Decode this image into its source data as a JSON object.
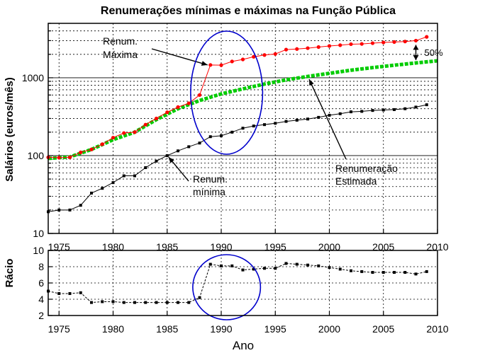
{
  "chart_data": [
    {
      "type": "line",
      "title": "Renumerações mínimas e máximas na Função Pública",
      "ylabel": "Salários (euros/mês)",
      "yscale": "log",
      "xlim": [
        1974,
        2010
      ],
      "ylim": [
        10,
        5000
      ],
      "xticks": [
        "1975",
        "1980",
        "1985",
        "1990",
        "1995",
        "2000",
        "2005",
        "2010"
      ],
      "yticks": [
        "10",
        "100",
        "1000"
      ],
      "grid": true,
      "colors": {
        "maxima": "#ff0000",
        "minima": "#000000",
        "estimada": "#00cc00",
        "circle": "#0000cc"
      },
      "series": [
        {
          "id": "maxima",
          "x": [
            1974,
            1975,
            1976,
            1977,
            1978,
            1979,
            1980,
            1981,
            1982,
            1983,
            1984,
            1985,
            1986,
            1987,
            1988,
            1989,
            1990,
            1991,
            1992,
            1993,
            1994,
            1995,
            1996,
            1997,
            1998,
            1999,
            2000,
            2001,
            2002,
            2003,
            2004,
            2005,
            2006,
            2007,
            2008,
            2009
          ],
          "y": [
            95,
            94,
            95,
            110,
            120,
            140,
            170,
            195,
            200,
            250,
            300,
            360,
            420,
            470,
            600,
            1460,
            1450,
            1620,
            1720,
            1860,
            1960,
            2020,
            2300,
            2340,
            2400,
            2480,
            2560,
            2620,
            2700,
            2720,
            2780,
            2840,
            2880,
            2920,
            3000,
            3350
          ]
        },
        {
          "id": "estimada",
          "x": [
            1974,
            1976,
            1978,
            1980,
            1982,
            1984,
            1986,
            1988,
            1990,
            1992,
            1994,
            1996,
            1998,
            2000,
            2002,
            2004,
            2006,
            2008,
            2010
          ],
          "y": [
            92,
            96,
            120,
            160,
            200,
            290,
            400,
            510,
            620,
            720,
            830,
            940,
            1040,
            1140,
            1250,
            1350,
            1450,
            1550,
            1650
          ]
        },
        {
          "id": "minima",
          "x": [
            1974,
            1975,
            1976,
            1977,
            1978,
            1979,
            1980,
            1981,
            1982,
            1983,
            1984,
            1985,
            1986,
            1987,
            1988,
            1989,
            1990,
            1991,
            1992,
            1993,
            1994,
            1995,
            1996,
            1997,
            1998,
            1999,
            2000,
            2001,
            2002,
            2003,
            2004,
            2005,
            2006,
            2007,
            2008,
            2009
          ],
          "y": [
            19,
            20,
            20,
            23,
            33,
            38,
            45,
            55,
            55,
            70,
            85,
            100,
            115,
            130,
            145,
            175,
            180,
            200,
            225,
            240,
            250,
            260,
            275,
            285,
            295,
            310,
            330,
            345,
            365,
            370,
            380,
            385,
            390,
            400,
            420,
            450
          ]
        }
      ],
      "annotations": [
        {
          "lines": [
            "Renum.",
            "Máxima"
          ],
          "target": [
            1989,
            1460
          ]
        },
        {
          "lines": [
            "Renum.",
            "mínima"
          ],
          "target": [
            1985,
            100
          ]
        },
        {
          "lines": [
            "Renumeração",
            "Estimada"
          ],
          "target": [
            1998,
            1040
          ]
        },
        {
          "lines": [
            "50%"
          ],
          "span": [
            [
              2008,
              3000
            ],
            [
              2008,
              1550
            ]
          ]
        }
      ],
      "highlight": {
        "center": [
          1990.5,
          700
        ],
        "rx_years": 3.0
      }
    },
    {
      "type": "line",
      "ylabel": "Rácio",
      "xlabel": "Ano",
      "xlim": [
        1974,
        2010
      ],
      "ylim": [
        2,
        10
      ],
      "xticks": [
        "1975",
        "1980",
        "1985",
        "1990",
        "1995",
        "2000",
        "2005",
        "2010"
      ],
      "yticks": [
        "2",
        "4",
        "6",
        "8",
        "10"
      ],
      "grid": true,
      "series": [
        {
          "id": "racio",
          "x": [
            1974,
            1975,
            1976,
            1977,
            1978,
            1979,
            1980,
            1981,
            1982,
            1983,
            1984,
            1985,
            1986,
            1987,
            1988,
            1989,
            1990,
            1991,
            1992,
            1993,
            1994,
            1995,
            1996,
            1997,
            1998,
            1999,
            2000,
            2001,
            2002,
            2003,
            2004,
            2005,
            2006,
            2007,
            2008,
            2009
          ],
          "y": [
            5.0,
            4.7,
            4.7,
            4.8,
            3.6,
            3.7,
            3.7,
            3.6,
            3.6,
            3.6,
            3.6,
            3.6,
            3.6,
            3.6,
            4.2,
            8.3,
            8.1,
            8.1,
            7.6,
            7.7,
            7.8,
            7.8,
            8.4,
            8.3,
            8.2,
            8.1,
            7.9,
            7.7,
            7.5,
            7.4,
            7.3,
            7.3,
            7.3,
            7.3,
            7.1,
            7.4
          ]
        }
      ],
      "highlight": {
        "center": [
          1990.5,
          5.8
        ],
        "rx_years": 3.0
      }
    }
  ]
}
